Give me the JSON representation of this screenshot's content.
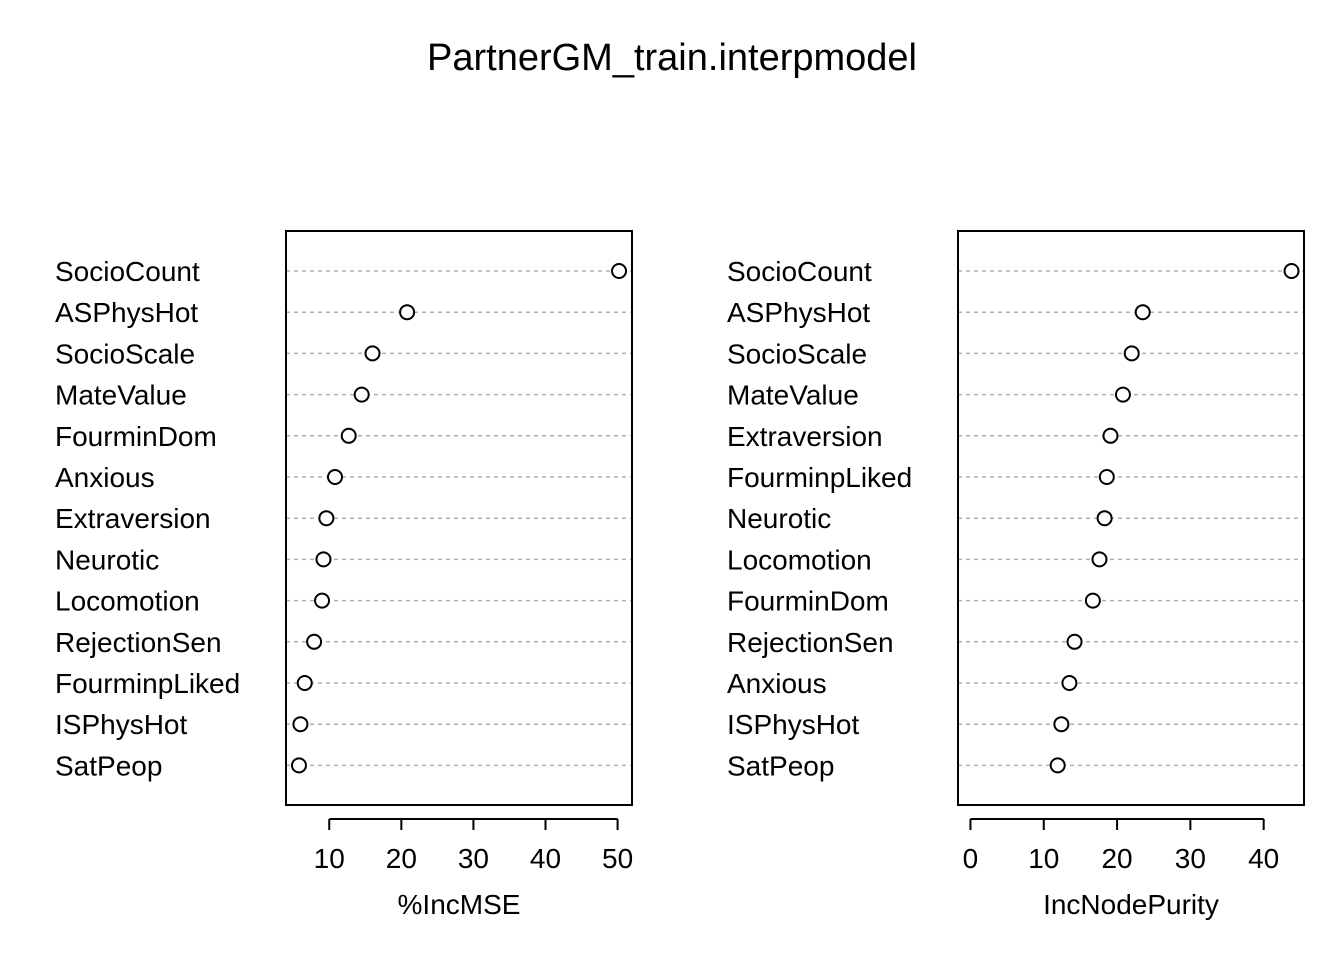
{
  "title": "PartnerGM_train.interpmodel",
  "chart_data": [
    {
      "type": "scatter",
      "variant": "dotchart",
      "title": "",
      "xlabel": "%IncMSE",
      "ylabel": "",
      "xlim": [
        4,
        52
      ],
      "xticks": [
        10,
        20,
        30,
        40,
        50
      ],
      "grid": "dotted-horizontal",
      "categories": [
        "SocioCount",
        "ASPhysHot",
        "SocioScale",
        "MateValue",
        "FourminDom",
        "Anxious",
        "Extraversion",
        "Neurotic",
        "Locomotion",
        "RejectionSen",
        "FourminpLiked",
        "ISPhysHot",
        "SatPeop"
      ],
      "values": [
        50.2,
        20.8,
        16.0,
        14.5,
        12.7,
        10.8,
        9.6,
        9.2,
        9.0,
        7.9,
        6.6,
        6.0,
        5.8
      ]
    },
    {
      "type": "scatter",
      "variant": "dotchart",
      "title": "",
      "xlabel": "IncNodePurity",
      "ylabel": "",
      "xlim": [
        -1.7,
        45.5
      ],
      "xticks": [
        0,
        10,
        20,
        30,
        40
      ],
      "grid": "dotted-horizontal",
      "categories": [
        "SocioCount",
        "ASPhysHot",
        "SocioScale",
        "MateValue",
        "Extraversion",
        "FourminpLiked",
        "Neurotic",
        "Locomotion",
        "FourminDom",
        "RejectionSen",
        "Anxious",
        "ISPhysHot",
        "SatPeop"
      ],
      "values": [
        43.8,
        23.5,
        22.0,
        20.8,
        19.1,
        18.6,
        18.3,
        17.6,
        16.7,
        14.2,
        13.5,
        12.4,
        11.9
      ]
    }
  ]
}
